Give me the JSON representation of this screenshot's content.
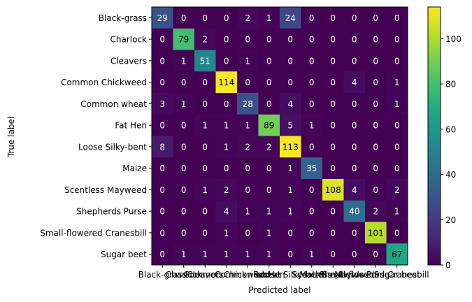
{
  "chart_data": {
    "type": "heatmap",
    "title": "",
    "xlabel": "Predicted label",
    "ylabel": "True label",
    "labels": [
      "Black-grass",
      "Charlock",
      "Cleavers",
      "Common Chickweed",
      "Common wheat",
      "Fat Hen",
      "Loose Silky-bent",
      "Maize",
      "Scentless Mayweed",
      "Shepherds Purse",
      "Small-flowered Cranesbill",
      "Sugar beet"
    ],
    "matrix": [
      [
        29,
        0,
        0,
        0,
        2,
        1,
        24,
        0,
        0,
        0,
        0,
        0
      ],
      [
        0,
        79,
        2,
        0,
        0,
        0,
        0,
        0,
        0,
        0,
        0,
        0
      ],
      [
        0,
        1,
        51,
        0,
        1,
        0,
        0,
        0,
        0,
        0,
        0,
        0
      ],
      [
        0,
        0,
        0,
        114,
        0,
        0,
        0,
        0,
        0,
        4,
        0,
        1
      ],
      [
        3,
        1,
        0,
        0,
        28,
        0,
        4,
        0,
        0,
        0,
        0,
        1
      ],
      [
        0,
        0,
        1,
        1,
        1,
        89,
        5,
        1,
        0,
        0,
        0,
        0
      ],
      [
        8,
        0,
        0,
        1,
        2,
        2,
        113,
        0,
        0,
        0,
        0,
        0
      ],
      [
        0,
        0,
        0,
        0,
        0,
        0,
        1,
        35,
        0,
        0,
        0,
        0
      ],
      [
        0,
        0,
        1,
        2,
        0,
        0,
        1,
        0,
        108,
        4,
        0,
        2
      ],
      [
        0,
        0,
        0,
        4,
        1,
        1,
        1,
        0,
        0,
        40,
        2,
        1
      ],
      [
        0,
        0,
        0,
        1,
        0,
        1,
        0,
        0,
        0,
        0,
        101,
        0
      ],
      [
        0,
        1,
        1,
        1,
        1,
        1,
        0,
        1,
        0,
        0,
        0,
        67
      ]
    ],
    "colorbar": {
      "colormap": "viridis",
      "range": [
        0,
        114
      ],
      "ticks": [
        0,
        20,
        40,
        60,
        80,
        100
      ]
    }
  }
}
